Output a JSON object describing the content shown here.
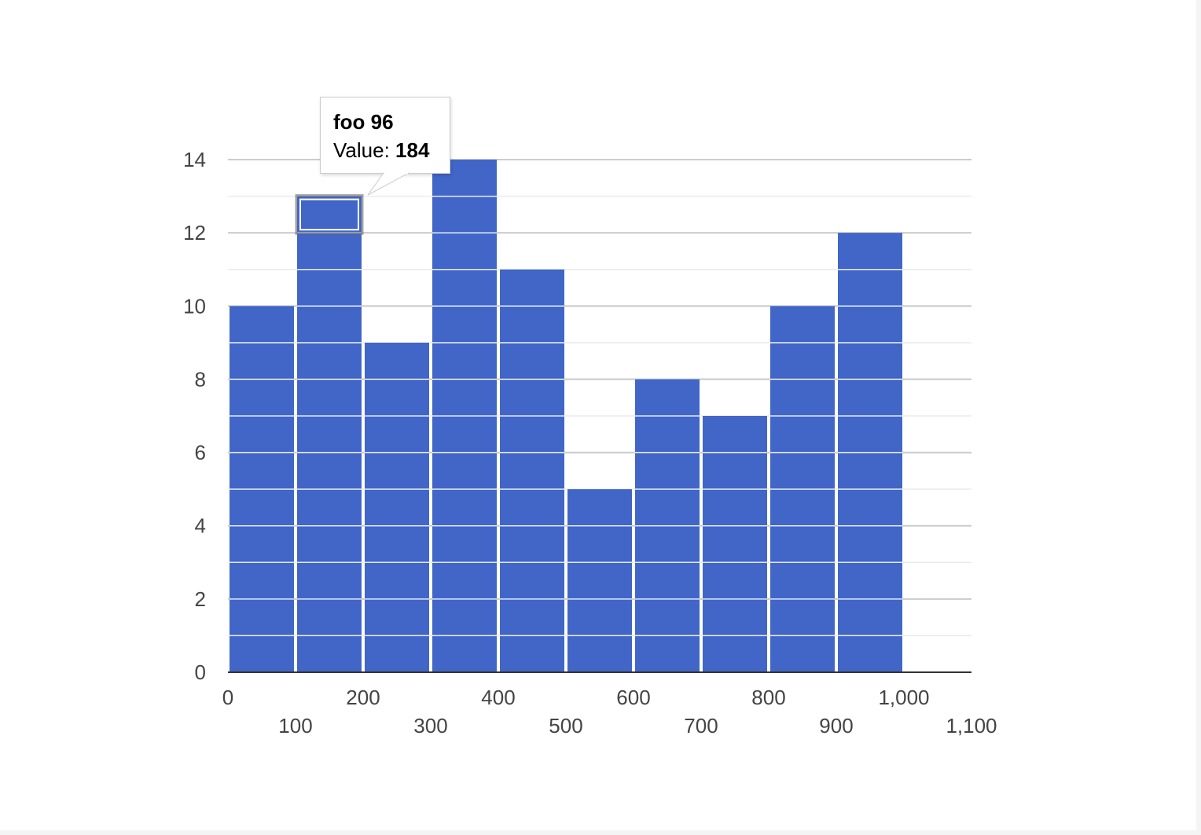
{
  "colors": {
    "bar": "#4166c7",
    "bar_divider": "#ffffff",
    "gridline_major": "#cccccc",
    "gridline_minor": "#ebebeb",
    "baseline": "#333333",
    "tick_text": "#444444",
    "selection": "#4166c7"
  },
  "chart_data": {
    "type": "bar",
    "subtype": "histogram",
    "title": "",
    "xlabel": "",
    "ylabel": "",
    "bins": [
      {
        "start": 0,
        "end": 100,
        "count": 10
      },
      {
        "start": 100,
        "end": 200,
        "count": 13
      },
      {
        "start": 200,
        "end": 300,
        "count": 9
      },
      {
        "start": 300,
        "end": 400,
        "count": 14
      },
      {
        "start": 400,
        "end": 500,
        "count": 11
      },
      {
        "start": 500,
        "end": 600,
        "count": 5
      },
      {
        "start": 600,
        "end": 700,
        "count": 8
      },
      {
        "start": 700,
        "end": 800,
        "count": 7
      },
      {
        "start": 800,
        "end": 900,
        "count": 10
      },
      {
        "start": 900,
        "end": 1000,
        "count": 12
      }
    ],
    "xlim": [
      0,
      1100
    ],
    "ylim": [
      0,
      14
    ],
    "x_ticks": [
      "0",
      "100",
      "200",
      "300",
      "400",
      "500",
      "600",
      "700",
      "800",
      "900",
      "1,000",
      "1,100"
    ],
    "y_ticks": [
      "0",
      "2",
      "4",
      "6",
      "8",
      "10",
      "12",
      "14"
    ],
    "grid": true,
    "legend": "none",
    "highlighted": {
      "bin_index": 1,
      "item_index": 12
    }
  },
  "tooltip": {
    "title": "foo 96",
    "value_label": "Value:",
    "value": "184"
  }
}
